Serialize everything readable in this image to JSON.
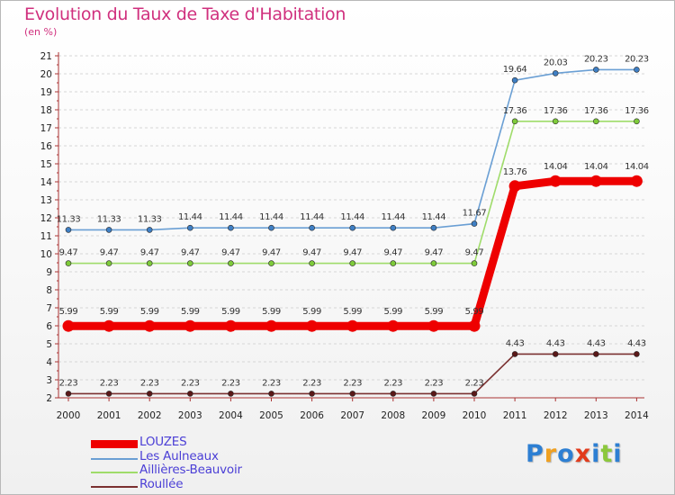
{
  "header": {
    "title": "Evolution du Taux de Taxe d'Habitation",
    "subtitle": "(en %)"
  },
  "logo": {
    "text": "Proxiti",
    "letter_colors": [
      "#2d7fd3",
      "#f0a020",
      "#2d7fd3",
      "#e23b1c",
      "#2d7fd3",
      "#8cc83c",
      "#2d7fd3"
    ]
  },
  "chart_data": {
    "type": "line",
    "title": "Evolution du Taux de Taxe d'Habitation",
    "ylabel": "(en %)",
    "xlabel": "",
    "x": [
      "2000",
      "2001",
      "2002",
      "2003",
      "2004",
      "2005",
      "2006",
      "2007",
      "2008",
      "2009",
      "2010",
      "2011",
      "2012",
      "2013",
      "2014"
    ],
    "ylim": [
      2,
      21
    ],
    "yticks": [
      2,
      3,
      4,
      5,
      6,
      7,
      8,
      9,
      10,
      11,
      12,
      13,
      14,
      15,
      16,
      17,
      18,
      19,
      20,
      21
    ],
    "grid": "horizontal-dashed",
    "legend_position": "bottom-left",
    "series": [
      {
        "name": "Les Aulneaux",
        "color": "#6a9fd4",
        "marker_color": "#3f7fc4",
        "values": [
          11.33,
          11.33,
          11.33,
          11.44,
          11.44,
          11.44,
          11.44,
          11.44,
          11.44,
          11.44,
          11.67,
          19.64,
          20.03,
          20.23,
          20.23
        ],
        "labels": [
          "11.33",
          "11.33",
          "11.33",
          "11.44",
          "11.44",
          "11.44",
          "11.44",
          "11.44",
          "11.44",
          "11.44",
          "11.67",
          "19.64",
          "20.03",
          "20.23",
          "20.23"
        ]
      },
      {
        "name": "Aillières-Beauvoir",
        "color": "#9fdc6a",
        "marker_color": "#7ecb3a",
        "values": [
          9.47,
          9.47,
          9.47,
          9.47,
          9.47,
          9.47,
          9.47,
          9.47,
          9.47,
          9.47,
          9.47,
          17.36,
          17.36,
          17.36,
          17.36
        ],
        "labels": [
          "9.47",
          "9.47",
          "9.47",
          "9.47",
          "9.47",
          "9.47",
          "9.47",
          "9.47",
          "9.47",
          "9.47",
          "9.47",
          "17.36",
          "17.36",
          "17.36",
          "17.36"
        ]
      },
      {
        "name": "LOUZES",
        "color": "#ee0000",
        "marker_color": "#ee0000",
        "bold": true,
        "values": [
          5.99,
          5.99,
          5.99,
          5.99,
          5.99,
          5.99,
          5.99,
          5.99,
          5.99,
          5.99,
          5.99,
          13.76,
          14.04,
          14.04,
          14.04
        ],
        "labels": [
          "5.99",
          "5.99",
          "5.99",
          "5.99",
          "5.99",
          "5.99",
          "5.99",
          "5.99",
          "5.99",
          "5.99",
          "5.99",
          "13.76",
          "14.04",
          "14.04",
          "14.04"
        ]
      },
      {
        "name": "Roullée",
        "color": "#7a3030",
        "marker_color": "#5a1818",
        "values": [
          2.23,
          2.23,
          2.23,
          2.23,
          2.23,
          2.23,
          2.23,
          2.23,
          2.23,
          2.23,
          2.23,
          4.43,
          4.43,
          4.43,
          4.43
        ],
        "labels": [
          "2.23",
          "2.23",
          "2.23",
          "2.23",
          "2.23",
          "2.23",
          "2.23",
          "2.23",
          "2.23",
          "2.23",
          "2.23",
          "4.43",
          "4.43",
          "4.43",
          "4.43"
        ]
      }
    ]
  },
  "legend": {
    "items": [
      {
        "label": "LOUZES",
        "color": "#ee0000",
        "thick": true
      },
      {
        "label": "Les Aulneaux",
        "color": "#6a9fd4",
        "thick": false
      },
      {
        "label": "Aillières-Beauvoir",
        "color": "#9fdc6a",
        "thick": false
      },
      {
        "label": "Roullée",
        "color": "#7a3030",
        "thick": false
      }
    ]
  }
}
